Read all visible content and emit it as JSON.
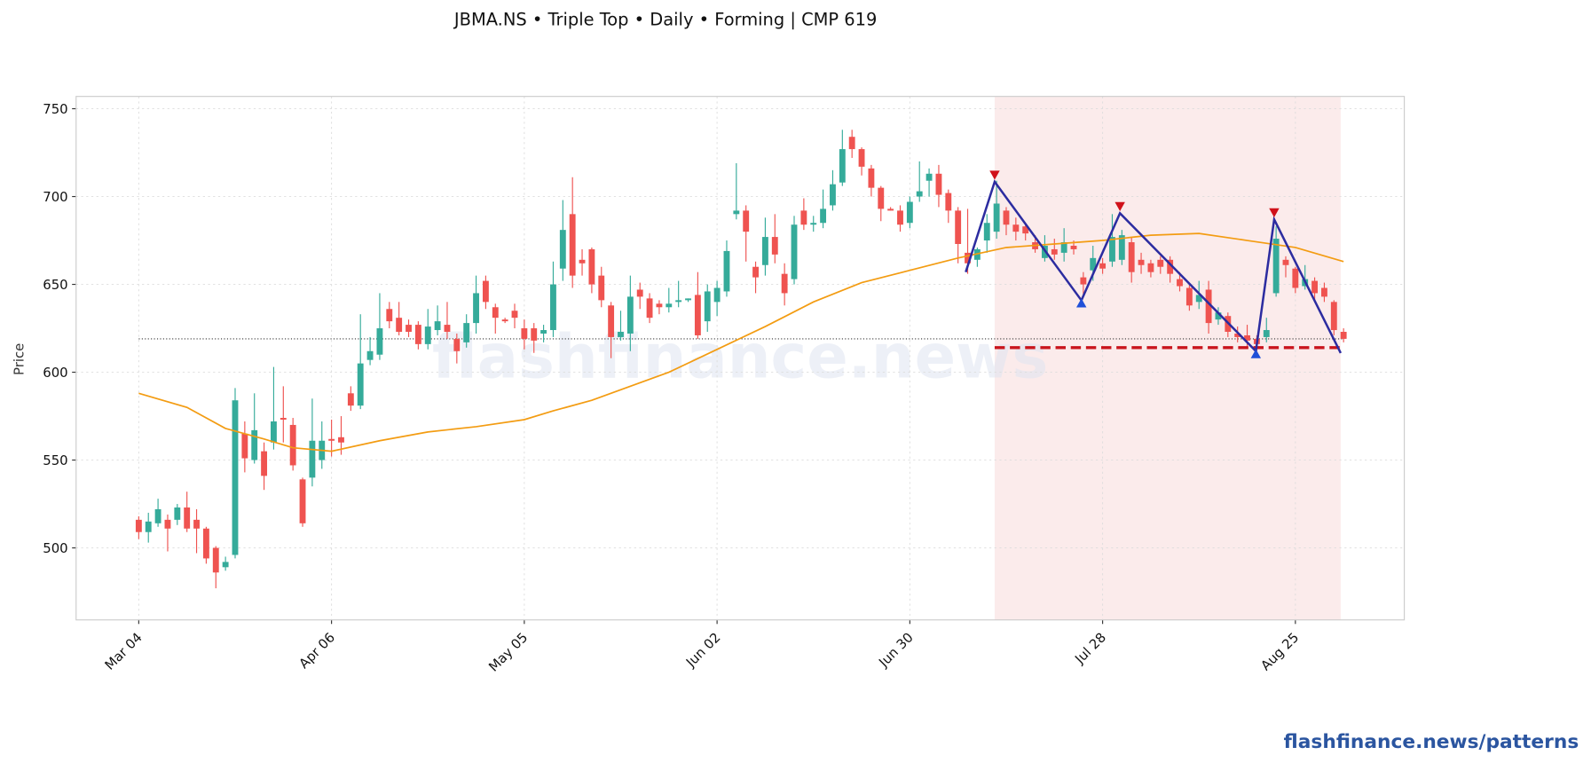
{
  "chart_data": {
    "type": "candlestick",
    "title": "JBMA.NS  •  Triple Top  •  Daily  •  Forming  |  CMP 619",
    "ylabel": "Price",
    "watermark": "flashfinance.news",
    "footer": "flashfinance.news/patterns",
    "grid": true,
    "up_color": "#35ab9a",
    "down_color": "#ef5350",
    "xlim": [
      -6.5,
      131.3
    ],
    "xticks": [
      {
        "value": 0,
        "label": "Mar 04"
      },
      {
        "value": 20,
        "label": "Apr 06"
      },
      {
        "value": 40,
        "label": "May 05"
      },
      {
        "value": 60,
        "label": "Jun 02"
      },
      {
        "value": 80,
        "label": "Jun 30"
      },
      {
        "value": 100,
        "label": "Jul 28"
      },
      {
        "value": 120,
        "label": "Aug 25"
      }
    ],
    "ylim": [
      459,
      757
    ],
    "yticks": [
      500,
      550,
      600,
      650,
      700,
      750
    ],
    "ohlc": [
      [
        516,
        518,
        505,
        509
      ],
      [
        509,
        520,
        503,
        515
      ],
      [
        514,
        528,
        512,
        522
      ],
      [
        516,
        519,
        498,
        511
      ],
      [
        516,
        525,
        513,
        523
      ],
      [
        523,
        532,
        509,
        511
      ],
      [
        516,
        522,
        497,
        511
      ],
      [
        511,
        512,
        491,
        494
      ],
      [
        500,
        501,
        477,
        486
      ],
      [
        489,
        495,
        487,
        492
      ],
      [
        496,
        591,
        494,
        584
      ],
      [
        565,
        572,
        543,
        551
      ],
      [
        550,
        588,
        548,
        567
      ],
      [
        555,
        560,
        533,
        541
      ],
      [
        560,
        603,
        556,
        572
      ],
      [
        574,
        592,
        560,
        573
      ],
      [
        570,
        574,
        544,
        547
      ],
      [
        539,
        540,
        512,
        514
      ],
      [
        540,
        585,
        535,
        561
      ],
      [
        550,
        572,
        545,
        561
      ],
      [
        562,
        573,
        552,
        561
      ],
      [
        563,
        575,
        553,
        560
      ],
      [
        588,
        592,
        578,
        581
      ],
      [
        581,
        633,
        579,
        605
      ],
      [
        607,
        620,
        604,
        612
      ],
      [
        610,
        645,
        607,
        625
      ],
      [
        636,
        640,
        625,
        629
      ],
      [
        631,
        640,
        621,
        623
      ],
      [
        627,
        630,
        620,
        623
      ],
      [
        627,
        629,
        613,
        616
      ],
      [
        616,
        636,
        613,
        626
      ],
      [
        624,
        638,
        621,
        629
      ],
      [
        627,
        640,
        619,
        623
      ],
      [
        619,
        622,
        605,
        612
      ],
      [
        617,
        633,
        614,
        628
      ],
      [
        628,
        655,
        622,
        645
      ],
      [
        652,
        655,
        636,
        640
      ],
      [
        637,
        639,
        622,
        631
      ],
      [
        630,
        631,
        628,
        629
      ],
      [
        635,
        639,
        625,
        631
      ],
      [
        625,
        630,
        613,
        619
      ],
      [
        625,
        628,
        611,
        618
      ],
      [
        622,
        627,
        617,
        624
      ],
      [
        624,
        663,
        620,
        650
      ],
      [
        659,
        698,
        652,
        681
      ],
      [
        690,
        711,
        648,
        655
      ],
      [
        664,
        670,
        655,
        662
      ],
      [
        670,
        671,
        645,
        650
      ],
      [
        655,
        660,
        637,
        641
      ],
      [
        638,
        640,
        608,
        620
      ],
      [
        620,
        635,
        618,
        623
      ],
      [
        622,
        655,
        612,
        643
      ],
      [
        647,
        651,
        636,
        643
      ],
      [
        642,
        645,
        628,
        631
      ],
      [
        639,
        641,
        633,
        637
      ],
      [
        637,
        648,
        634,
        639
      ],
      [
        640,
        652,
        637,
        641
      ],
      [
        641,
        642,
        640,
        642
      ],
      [
        644,
        657,
        619,
        621
      ],
      [
        629,
        650,
        623,
        646
      ],
      [
        640,
        652,
        632,
        648
      ],
      [
        646,
        675,
        643,
        669
      ],
      [
        690,
        719,
        687,
        692
      ],
      [
        692,
        695,
        663,
        680
      ],
      [
        660,
        663,
        645,
        654
      ],
      [
        661,
        688,
        655,
        677
      ],
      [
        677,
        690,
        662,
        667
      ],
      [
        656,
        662,
        638,
        645
      ],
      [
        653,
        689,
        650,
        684
      ],
      [
        692,
        699,
        681,
        684
      ],
      [
        684,
        689,
        680,
        685
      ],
      [
        685,
        704,
        682,
        693
      ],
      [
        695,
        715,
        692,
        707
      ],
      [
        708,
        738,
        706,
        727
      ],
      [
        734,
        738,
        722,
        727
      ],
      [
        727,
        728,
        712,
        717
      ],
      [
        716,
        718,
        700,
        705
      ],
      [
        705,
        706,
        686,
        693
      ],
      [
        693,
        694,
        692,
        692
      ],
      [
        692,
        695,
        680,
        684
      ],
      [
        685,
        700,
        682,
        697
      ],
      [
        700,
        720,
        697,
        703
      ],
      [
        709,
        716,
        700,
        713
      ],
      [
        713,
        718,
        694,
        701
      ],
      [
        702,
        704,
        685,
        692
      ],
      [
        692,
        694,
        662,
        673
      ],
      [
        668,
        693,
        656,
        662
      ],
      [
        664,
        671,
        660,
        670
      ],
      [
        675,
        690,
        668,
        685
      ],
      [
        680,
        709,
        676,
        696
      ],
      [
        692,
        694,
        678,
        684
      ],
      [
        684,
        688,
        675,
        680
      ],
      [
        683,
        685,
        675,
        679
      ],
      [
        674,
        678,
        668,
        670
      ],
      [
        665,
        678,
        663,
        672
      ],
      [
        670,
        676,
        664,
        667
      ],
      [
        668,
        682,
        663,
        674
      ],
      [
        672,
        675,
        667,
        670
      ],
      [
        654,
        657,
        643,
        650
      ],
      [
        658,
        672,
        652,
        665
      ],
      [
        662,
        665,
        656,
        659
      ],
      [
        663,
        690,
        660,
        677
      ],
      [
        664,
        681,
        661,
        678
      ],
      [
        674,
        677,
        651,
        657
      ],
      [
        664,
        668,
        656,
        661
      ],
      [
        662,
        664,
        654,
        657
      ],
      [
        664,
        666,
        656,
        660
      ],
      [
        664,
        666,
        651,
        656
      ],
      [
        653,
        657,
        646,
        649
      ],
      [
        648,
        651,
        635,
        638
      ],
      [
        640,
        652,
        636,
        644
      ],
      [
        647,
        652,
        622,
        628
      ],
      [
        630,
        637,
        627,
        634
      ],
      [
        632,
        634,
        620,
        623
      ],
      [
        622,
        626,
        617,
        620
      ],
      [
        621,
        627,
        614,
        618
      ],
      [
        619,
        621,
        612,
        616
      ],
      [
        620,
        631,
        617,
        624
      ],
      [
        645,
        683,
        643,
        676
      ],
      [
        664,
        666,
        654,
        661
      ],
      [
        659,
        660,
        645,
        648
      ],
      [
        649,
        661,
        647,
        653
      ],
      [
        652,
        654,
        640,
        645
      ],
      [
        648,
        651,
        640,
        643
      ],
      [
        640,
        641,
        621,
        624
      ],
      [
        623,
        625,
        617,
        619
      ]
    ],
    "moving_average": {
      "color": "#f39c12",
      "x": [
        0,
        5,
        9,
        13,
        16,
        20,
        25,
        30,
        35,
        40,
        43,
        47,
        50,
        55,
        60,
        65,
        70,
        75,
        80,
        85,
        90,
        95,
        100,
        105,
        110,
        115,
        120,
        125
      ],
      "values": [
        588,
        580,
        568,
        562,
        557,
        555,
        561,
        566,
        569,
        573,
        578,
        584,
        590,
        600,
        613,
        626,
        640,
        651,
        658,
        665,
        671,
        673,
        675,
        678,
        679,
        675,
        671,
        663
      ]
    },
    "cmp_line": {
      "value": 619,
      "x": [
        0,
        125
      ],
      "color": "#333333"
    },
    "pattern_zone": {
      "x": [
        88.8,
        124.7
      ],
      "color": "#f4c7c7"
    },
    "pattern_line": {
      "color": "#2c2ca0",
      "x": [
        85.8,
        88.8,
        97.8,
        101.8,
        115.9,
        117.8,
        124.7
      ],
      "values": [
        657,
        708.4,
        640.9,
        690.5,
        612,
        687,
        610.9
      ]
    },
    "peaks": {
      "color": "#d0111a",
      "x": [
        88.8,
        101.8,
        117.8
      ],
      "values": [
        708.4,
        690.5,
        687
      ]
    },
    "troughs": {
      "color": "#2050d8",
      "x": [
        97.8,
        115.9
      ],
      "values": [
        640.9,
        612
      ]
    },
    "neckline": {
      "value": 614,
      "x": [
        88.8,
        124.7
      ],
      "color": "#c9141c"
    }
  }
}
